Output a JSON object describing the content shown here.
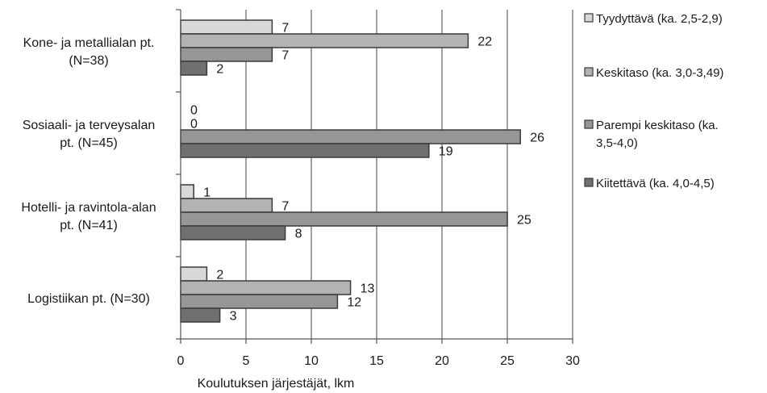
{
  "chart_data": {
    "type": "bar",
    "orientation": "horizontal",
    "xlabel": "Koulutuksen järjestäjät, lkm",
    "ylabel": "",
    "xlim": [
      0,
      30
    ],
    "xticks": [
      0,
      5,
      10,
      15,
      20,
      25,
      30
    ],
    "grid": "vertical",
    "legend_position": "right",
    "categories": [
      [
        "Kone- ja metallialan pt.",
        "(N=38)"
      ],
      [
        "Sosiaali- ja terveysalan",
        "pt. (N=45)"
      ],
      [
        "Hotelli- ja ravintola-alan",
        "pt. (N=41)"
      ],
      [
        "Logistiikan pt. (N=30)"
      ]
    ],
    "series": [
      {
        "name": "Tyydyttävä (ka. 2,5-2,9)",
        "legend_lines": [
          "Tyydyttävä (ka. 2,5-2,9)"
        ],
        "color": "#d8d8d8",
        "values": [
          7,
          0,
          1,
          2
        ]
      },
      {
        "name": "Keskitaso (ka. 3,0-3,49)",
        "legend_lines": [
          "Keskitaso (ka. 3,0-3,49)"
        ],
        "color": "#b3b3b3",
        "values": [
          22,
          0,
          7,
          13
        ]
      },
      {
        "name": "Parempi keskitaso (ka. 3,5-4,0)",
        "legend_lines": [
          "Parempi keskitaso (ka.",
          "3,5-4,0)"
        ],
        "color": "#969696",
        "values": [
          7,
          26,
          25,
          12
        ]
      },
      {
        "name": "Kiitettävä (ka. 4,0-4,5)",
        "legend_lines": [
          "Kiitettävä (ka. 4,0-4,5)"
        ],
        "color": "#707070",
        "values": [
          2,
          19,
          8,
          3
        ]
      }
    ]
  }
}
